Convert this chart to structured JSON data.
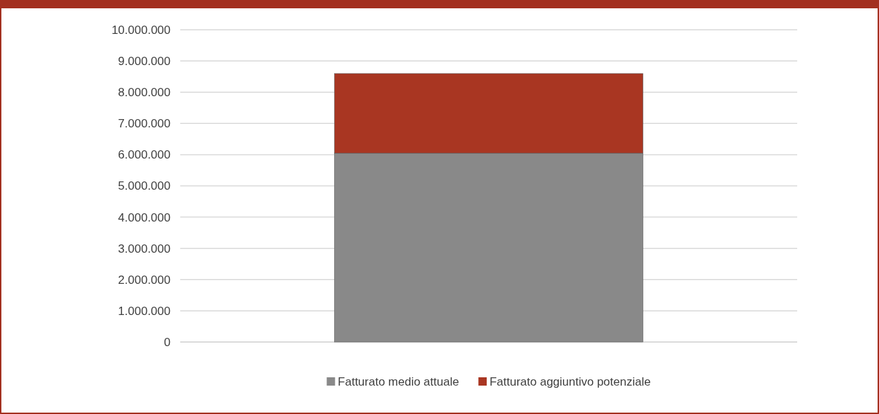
{
  "chart_data": {
    "type": "bar",
    "stacked": true,
    "categories": [
      null
    ],
    "series": [
      {
        "name": "Fatturato medio attuale",
        "color": "#898989",
        "values": [
          6050000
        ]
      },
      {
        "name": "Fatturato aggiuntivo potenziale",
        "color": "#a93622",
        "values": [
          2550000
        ]
      }
    ],
    "ylim": [
      0,
      10000000
    ],
    "yticks": [
      {
        "value": 0,
        "label": "0"
      },
      {
        "value": 1000000,
        "label": "1.000.000"
      },
      {
        "value": 2000000,
        "label": "2.000.000"
      },
      {
        "value": 3000000,
        "label": "3.000.000"
      },
      {
        "value": 4000000,
        "label": "4.000.000"
      },
      {
        "value": 5000000,
        "label": "5.000.000"
      },
      {
        "value": 6000000,
        "label": "6.000.000"
      },
      {
        "value": 7000000,
        "label": "7.000.000"
      },
      {
        "value": 8000000,
        "label": "8.000.000"
      },
      {
        "value": 9000000,
        "label": "9.000.000"
      },
      {
        "value": 10000000,
        "label": "10.000.000"
      }
    ],
    "grid": "y",
    "legend": "bottom"
  }
}
